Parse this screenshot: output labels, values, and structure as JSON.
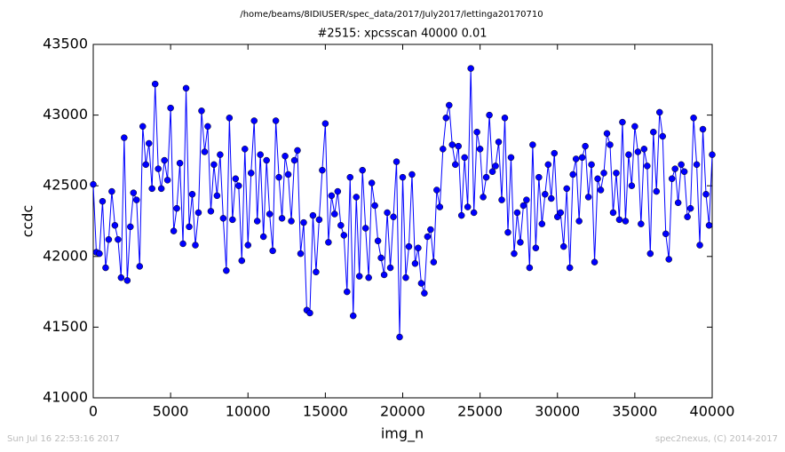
{
  "chart_data": {
    "type": "line",
    "suptitle": "/home/beams/8IDIUSER/spec_data/2017/July2017/lettinga20170710",
    "title": "#2515: xpcsscan 40000 0.01",
    "xlabel": "img_n",
    "ylabel": "ccdc",
    "footer_left": "Sun Jul 16 22:53:16 2017",
    "footer_right": "spec2nexus, (C) 2014-2017",
    "xlim": [
      0,
      40000
    ],
    "xticks": [
      0,
      5000,
      10000,
      15000,
      20000,
      25000,
      30000,
      35000,
      40000
    ],
    "ylim": [
      41000,
      43500
    ],
    "yticks": [
      41000,
      41500,
      42000,
      42500,
      43000,
      43500
    ],
    "x": [
      0,
      200,
      400,
      600,
      800,
      1000,
      1200,
      1400,
      1600,
      1800,
      2000,
      2200,
      2400,
      2600,
      2800,
      3000,
      3200,
      3400,
      3600,
      3800,
      4000,
      4200,
      4400,
      4600,
      4800,
      5000,
      5200,
      5400,
      5600,
      5800,
      6000,
      6200,
      6400,
      6600,
      6800,
      7000,
      7200,
      7400,
      7600,
      7800,
      8000,
      8200,
      8400,
      8600,
      8800,
      9000,
      9200,
      9400,
      9600,
      9800,
      10000,
      10200,
      10400,
      10600,
      10800,
      11000,
      11200,
      11400,
      11600,
      11800,
      12000,
      12200,
      12400,
      12600,
      12800,
      13000,
      13200,
      13400,
      13600,
      13800,
      14000,
      14200,
      14400,
      14600,
      14800,
      15000,
      15200,
      15400,
      15600,
      15800,
      16000,
      16200,
      16400,
      16600,
      16800,
      17000,
      17200,
      17400,
      17600,
      17800,
      18000,
      18200,
      18400,
      18600,
      18800,
      19000,
      19200,
      19400,
      19600,
      19800,
      20000,
      20200,
      20400,
      20600,
      20800,
      21000,
      21200,
      21400,
      21600,
      21800,
      22000,
      22200,
      22400,
      22600,
      22800,
      23000,
      23200,
      23400,
      23600,
      23800,
      24000,
      24200,
      24400,
      24600,
      24800,
      25000,
      25200,
      25400,
      25600,
      25800,
      26000,
      26200,
      26400,
      26600,
      26800,
      27000,
      27200,
      27400,
      27600,
      27800,
      28000,
      28200,
      28400,
      28600,
      28800,
      29000,
      29200,
      29400,
      29600,
      29800,
      30000,
      30200,
      30400,
      30600,
      30800,
      31000,
      31200,
      31400,
      31600,
      31800,
      32000,
      32200,
      32400,
      32600,
      32800,
      33000,
      33200,
      33400,
      33600,
      33800,
      34000,
      34200,
      34400,
      34600,
      34800,
      35000,
      35200,
      35400,
      35600,
      35800,
      36000,
      36200,
      36400,
      36600,
      36800,
      37000,
      37200,
      37400,
      37600,
      37800,
      38000,
      38200,
      38400,
      38600,
      38800,
      39000,
      39200,
      39400,
      39600,
      39800,
      40000
    ],
    "series": [
      {
        "name": "ccdc",
        "color": "#0000ff",
        "values": [
          42510,
          42030,
          42020,
          42390,
          41920,
          42120,
          42460,
          42220,
          42120,
          41850,
          42840,
          41830,
          42210,
          42450,
          42400,
          41930,
          42920,
          42650,
          42800,
          42480,
          43220,
          42620,
          42480,
          42680,
          42540,
          43050,
          42180,
          42340,
          42660,
          42090,
          43190,
          42210,
          42440,
          42080,
          42310,
          43030,
          42740,
          42920,
          42320,
          42650,
          42430,
          42720,
          42270,
          41900,
          42980,
          42260,
          42550,
          42500,
          41970,
          42760,
          42080,
          42590,
          42960,
          42250,
          42720,
          42140,
          42680,
          42300,
          42040,
          42960,
          42560,
          42270,
          42710,
          42580,
          42250,
          42680,
          42750,
          42020,
          42240,
          41620,
          41600,
          42290,
          41890,
          42260,
          42610,
          42940,
          42100,
          42430,
          42300,
          42460,
          42220,
          42150,
          41750,
          42560,
          41580,
          42420,
          41860,
          42610,
          42200,
          41850,
          42520,
          42360,
          42110,
          41990,
          41870,
          42310,
          41920,
          42280,
          42670,
          41430,
          42560,
          41850,
          42070,
          42580,
          41950,
          42060,
          41810,
          41740,
          42140,
          42190,
          41960,
          42470,
          42350,
          42760,
          42980,
          43070,
          42790,
          42650,
          42780,
          42290,
          42700,
          42350,
          43330,
          42310,
          42880,
          42760,
          42420,
          42560,
          43000,
          42600,
          42640,
          42810,
          42400,
          42980,
          42170,
          42700,
          42020,
          42310,
          42100,
          42360,
          42400,
          41920,
          42790,
          42060,
          42560,
          42230,
          42440,
          42650,
          42410,
          42730,
          42280,
          42310,
          42070,
          42480,
          41920,
          42580,
          42690,
          42250,
          42700,
          42780,
          42420,
          42650,
          41960,
          42550,
          42470,
          42590,
          42870,
          42790,
          42310,
          42590,
          42260,
          42950,
          42250,
          42720,
          42500,
          42920,
          42740,
          42230,
          42760,
          42640,
          42020,
          42880,
          42460,
          43020,
          42850,
          42160,
          41980,
          42550,
          42620,
          42380,
          42650,
          42600,
          42280,
          42340,
          42980,
          42650,
          42080,
          42900,
          42440,
          42220,
          42720
        ]
      }
    ]
  }
}
